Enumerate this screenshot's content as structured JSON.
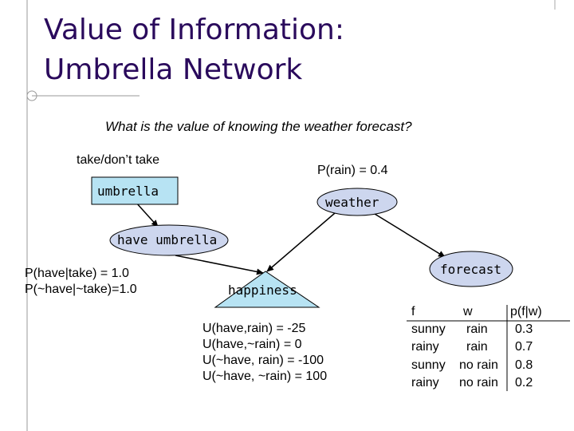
{
  "slide": {
    "title_line1": "Value of Information:",
    "title_line2": "Umbrella Network",
    "question": "What is the value of knowing the weather forecast?"
  },
  "nodes": {
    "decision_caption": "take/don’t take",
    "umbrella": "umbrella",
    "weather": "weather",
    "have_umbrella": "have umbrella",
    "forecast": "forecast",
    "happiness": "happiness"
  },
  "annotations": {
    "prior_rain": "P(rain) = 0.4",
    "have_probs": "P(have|take) = 1.0\nP(~have|~take)=1.0",
    "utilities": "U(have,rain) = -25\nU(have,~rain) = 0\nU(~have, rain) = -100\nU(~have, ~rain) = 100"
  },
  "cpt": {
    "headers": [
      "f",
      "w",
      "p(f|w)"
    ],
    "rows": [
      [
        "sunny",
        "rain",
        "0.3"
      ],
      [
        "rainy",
        "rain",
        "0.7"
      ],
      [
        "sunny",
        "no rain",
        "0.8"
      ],
      [
        "rainy",
        "no rain",
        "0.2"
      ]
    ]
  },
  "colors": {
    "title": "#2a0a5c",
    "node_fill": "#cdd6ee",
    "decision_fill": "#b7e3f3",
    "utility_fill": "#b7e3f3",
    "edge": "#000000"
  }
}
